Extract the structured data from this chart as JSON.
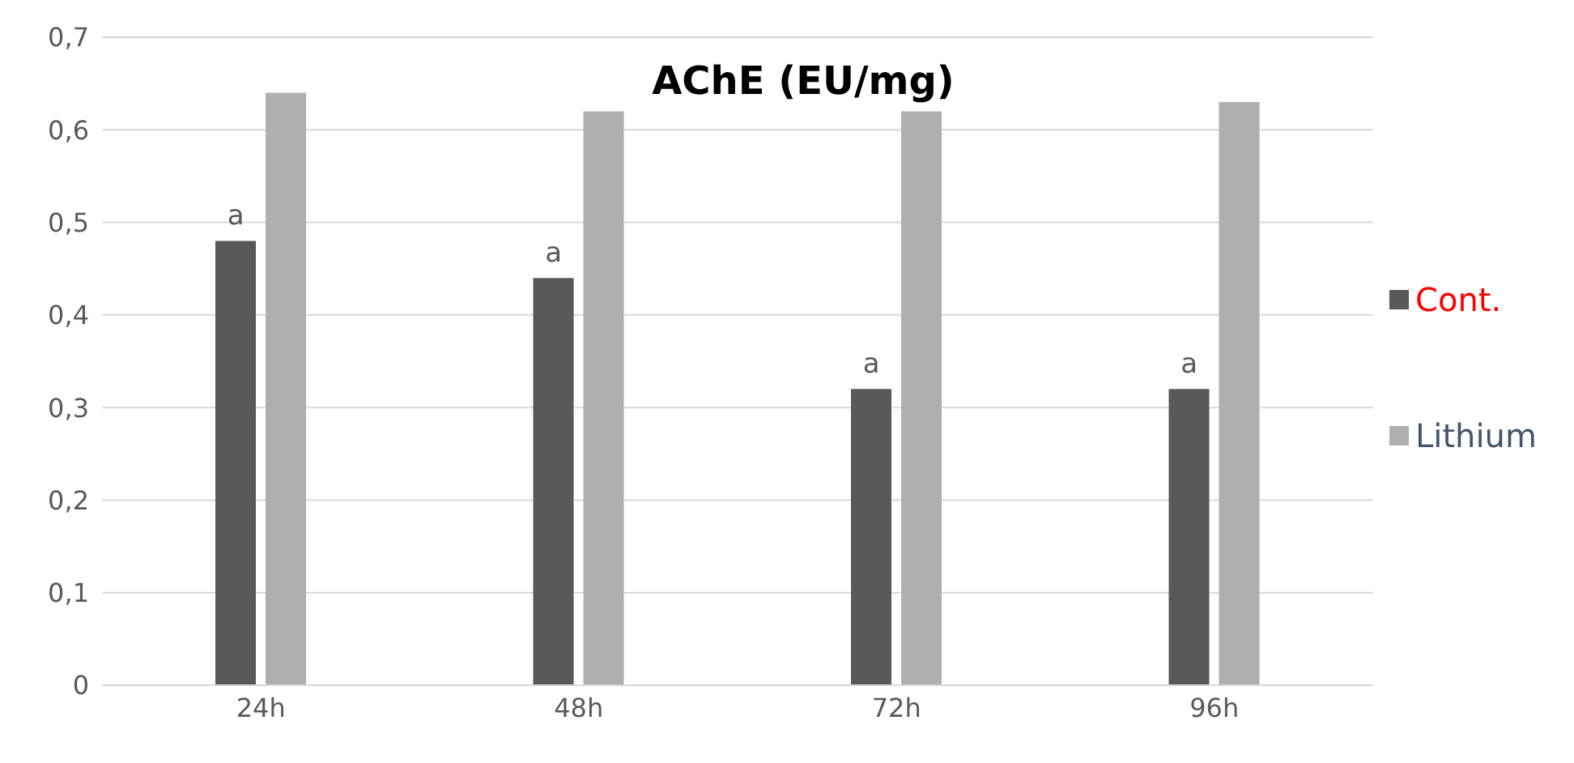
{
  "chart_data": {
    "type": "bar",
    "title": "AChE (EU/mg)",
    "categories": [
      "24h",
      "48h",
      "72h",
      "96h"
    ],
    "series": [
      {
        "name": "Cont.",
        "color": "#595959",
        "values": [
          0.48,
          0.44,
          0.32,
          0.32
        ]
      },
      {
        "name": "Lithium",
        "color": "#afafaf",
        "values": [
          0.64,
          0.62,
          0.62,
          0.63
        ]
      }
    ],
    "ylim": [
      0,
      0.7
    ],
    "yticks": [
      {
        "value": 0,
        "label": "0"
      },
      {
        "value": 0.1,
        "label": "0,1"
      },
      {
        "value": 0.2,
        "label": "0,2"
      },
      {
        "value": 0.3,
        "label": "0,3"
      },
      {
        "value": 0.4,
        "label": "0,4"
      },
      {
        "value": 0.5,
        "label": "0,5"
      },
      {
        "value": 0.6,
        "label": "0,6"
      },
      {
        "value": 0.7,
        "label": "0,7"
      }
    ],
    "grid": "y",
    "legend": "right",
    "annotations": [
      {
        "text": "a",
        "x": "24h",
        "y": 0.48
      },
      {
        "text": "a",
        "x": "48h",
        "y": 0.44
      },
      {
        "text": "a",
        "x": "72h",
        "y": 0.32
      },
      {
        "text": "a",
        "x": "96h",
        "y": 0.32
      }
    ]
  }
}
